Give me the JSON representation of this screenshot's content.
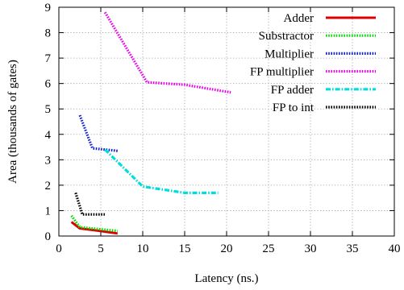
{
  "chart_data": {
    "type": "line",
    "xlabel": "Latency (ns.)",
    "ylabel": "Area (thousands of gates)",
    "xlim": [
      0,
      40
    ],
    "ylim": [
      0,
      9
    ],
    "xticks": [
      "0",
      "5",
      "10",
      "15",
      "20",
      "25",
      "30",
      "35",
      "40"
    ],
    "yticks": [
      "0",
      "1",
      "2",
      "3",
      "4",
      "5",
      "6",
      "7",
      "8",
      "9"
    ],
    "grid": true,
    "legend_position": "top-right",
    "series": [
      {
        "name": "Adder",
        "color": "#dd0000",
        "dash": "solid",
        "points": [
          [
            1.5,
            0.55
          ],
          [
            2.5,
            0.3
          ],
          [
            4.5,
            0.22
          ],
          [
            7.0,
            0.1
          ]
        ]
      },
      {
        "name": "Substractor",
        "color": "#00dd00",
        "dash": "dotted",
        "points": [
          [
            1.5,
            0.8
          ],
          [
            2.5,
            0.35
          ],
          [
            4.5,
            0.28
          ],
          [
            7.0,
            0.2
          ]
        ]
      },
      {
        "name": "Multiplier",
        "color": "#1020d0",
        "dash": "dotted",
        "points": [
          [
            2.5,
            4.75
          ],
          [
            4.0,
            3.45
          ],
          [
            7.0,
            3.35
          ]
        ]
      },
      {
        "name": "FP multiplier",
        "color": "#ee00ee",
        "dash": "dotted",
        "points": [
          [
            5.5,
            8.8
          ],
          [
            10.5,
            6.05
          ],
          [
            15.0,
            5.95
          ],
          [
            20.5,
            5.65
          ]
        ]
      },
      {
        "name": "FP adder",
        "color": "#00dddd",
        "dash": "dashdot",
        "points": [
          [
            5.5,
            3.4
          ],
          [
            10.0,
            1.95
          ],
          [
            15.0,
            1.7
          ],
          [
            19.0,
            1.7
          ]
        ]
      },
      {
        "name": "FP to int",
        "color": "#000000",
        "dash": "dotted",
        "points": [
          [
            2.0,
            1.7
          ],
          [
            2.8,
            0.85
          ],
          [
            5.5,
            0.85
          ]
        ]
      }
    ]
  }
}
